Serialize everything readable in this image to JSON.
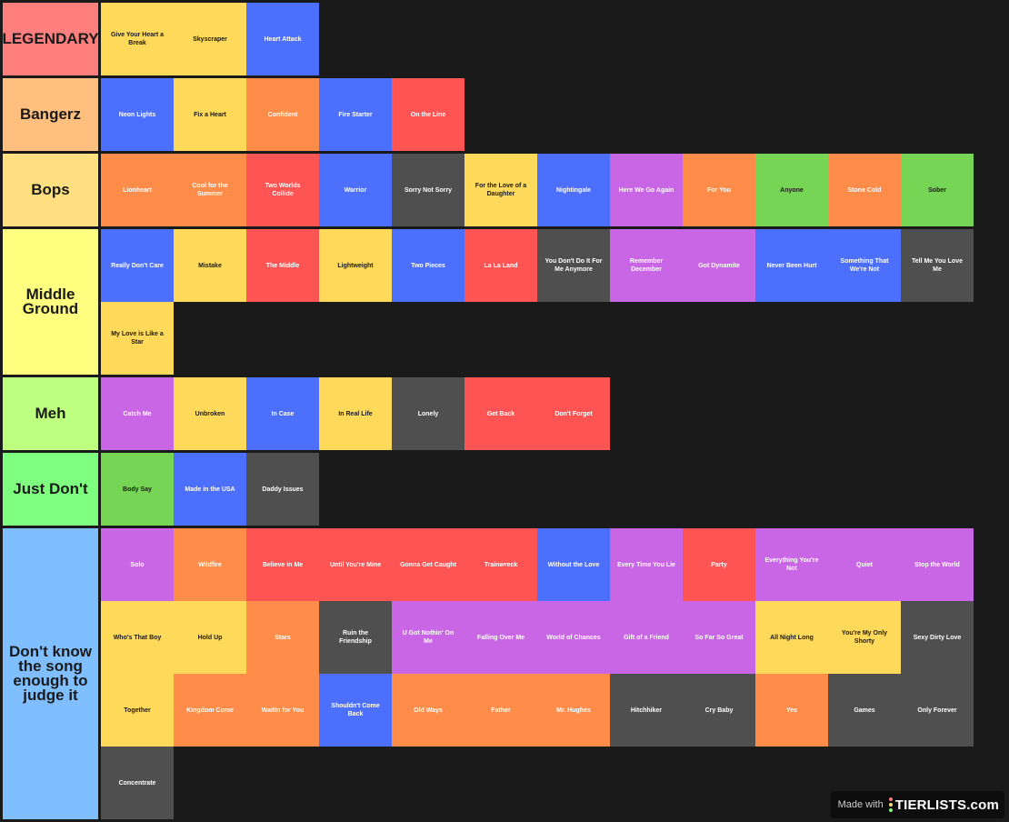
{
  "tiers": [
    {
      "label": "LEGENDARY",
      "color": "#ff7f7f",
      "rows": 1,
      "items": [
        {
          "title": "Give Your Heart a Break",
          "color": "yellow"
        },
        {
          "title": "Skyscraper",
          "color": "yellow"
        },
        {
          "title": "Heart Attack",
          "color": "blue"
        }
      ]
    },
    {
      "label": "Bangerz",
      "color": "#ffbf7f",
      "rows": 1,
      "items": [
        {
          "title": "Neon Lights",
          "color": "blue"
        },
        {
          "title": "Fix a Heart",
          "color": "yellow"
        },
        {
          "title": "Confident",
          "color": "orange"
        },
        {
          "title": "Fire Starter",
          "color": "blue"
        },
        {
          "title": "On the Line",
          "color": "red"
        }
      ]
    },
    {
      "label": "Bops",
      "color": "#ffdf7f",
      "rows": 1,
      "items": [
        {
          "title": "Lionheart",
          "color": "orange"
        },
        {
          "title": "Cool for the Summer",
          "color": "orange"
        },
        {
          "title": "Two Worlds Collide",
          "color": "red"
        },
        {
          "title": "Warrior",
          "color": "blue"
        },
        {
          "title": "Sorry Not Sorry",
          "color": "gray"
        },
        {
          "title": "For the Love of a Daughter",
          "color": "yellow"
        },
        {
          "title": "Nightingale",
          "color": "blue"
        },
        {
          "title": "Here We Go Again",
          "color": "purple"
        },
        {
          "title": "For You",
          "color": "orange"
        },
        {
          "title": "Anyone",
          "color": "green"
        },
        {
          "title": "Stone Cold",
          "color": "orange"
        },
        {
          "title": "Sober",
          "color": "green"
        }
      ]
    },
    {
      "label": "Middle Ground",
      "color": "#ffff7f",
      "rows": 2,
      "items": [
        {
          "title": "Really Don't Care",
          "color": "blue"
        },
        {
          "title": "Mistake",
          "color": "yellow"
        },
        {
          "title": "The Middle",
          "color": "red"
        },
        {
          "title": "Lightweight",
          "color": "yellow"
        },
        {
          "title": "Two Pieces",
          "color": "blue"
        },
        {
          "title": "La La Land",
          "color": "red"
        },
        {
          "title": "You Don't Do It For Me Anymore",
          "color": "gray"
        },
        {
          "title": "Remember December",
          "color": "purple"
        },
        {
          "title": "Got Dynamite",
          "color": "purple"
        },
        {
          "title": "Never Been Hurt",
          "color": "blue"
        },
        {
          "title": "Something That We're Not",
          "color": "blue"
        },
        {
          "title": "Tell Me You Love Me",
          "color": "gray"
        },
        {
          "title": "My Love is Like a Star",
          "color": "yellow"
        }
      ]
    },
    {
      "label": "Meh",
      "color": "#bfff7f",
      "rows": 1,
      "items": [
        {
          "title": "Catch Me",
          "color": "purple"
        },
        {
          "title": "Unbroken",
          "color": "yellow"
        },
        {
          "title": "In Case",
          "color": "blue"
        },
        {
          "title": "In Real Life",
          "color": "yellow"
        },
        {
          "title": "Lonely",
          "color": "gray"
        },
        {
          "title": "Get Back",
          "color": "red"
        },
        {
          "title": "Don't Forget",
          "color": "red"
        }
      ]
    },
    {
      "label": "Just Don't",
      "color": "#7fff7f",
      "rows": 1,
      "items": [
        {
          "title": "Body Say",
          "color": "green"
        },
        {
          "title": "Made in the USA",
          "color": "blue"
        },
        {
          "title": "Daddy Issues",
          "color": "gray"
        }
      ]
    },
    {
      "label": "Don't know the song enough to judge it",
      "color": "#7fbfff",
      "rows": 4,
      "items": [
        {
          "title": "Solo",
          "color": "purple"
        },
        {
          "title": "Wildfire",
          "color": "orange"
        },
        {
          "title": "Believe in Me",
          "color": "red"
        },
        {
          "title": "Until You're Mine",
          "color": "red"
        },
        {
          "title": "Gonna Get Caught",
          "color": "red"
        },
        {
          "title": "Trainwreck",
          "color": "red"
        },
        {
          "title": "Without the Love",
          "color": "blue"
        },
        {
          "title": "Every Time You Lie",
          "color": "purple"
        },
        {
          "title": "Party",
          "color": "red"
        },
        {
          "title": "Everything You're Not",
          "color": "purple"
        },
        {
          "title": "Quiet",
          "color": "purple"
        },
        {
          "title": "Stop the World",
          "color": "purple"
        },
        {
          "title": "Who's That Boy",
          "color": "yellow"
        },
        {
          "title": "Hold Up",
          "color": "yellow"
        },
        {
          "title": "Stars",
          "color": "orange"
        },
        {
          "title": "Ruin the Friendship",
          "color": "gray"
        },
        {
          "title": "U Got Nothin' On Me",
          "color": "purple"
        },
        {
          "title": "Falling Over Me",
          "color": "purple"
        },
        {
          "title": "World of Chances",
          "color": "purple"
        },
        {
          "title": "Gift of a Friend",
          "color": "purple"
        },
        {
          "title": "So Far So Great",
          "color": "purple"
        },
        {
          "title": "All Night Long",
          "color": "yellow"
        },
        {
          "title": "You're My Only Shorty",
          "color": "yellow"
        },
        {
          "title": "Sexy Dirty Love",
          "color": "gray"
        },
        {
          "title": "Together",
          "color": "yellow"
        },
        {
          "title": "Kingdom Come",
          "color": "orange"
        },
        {
          "title": "Waitin for You",
          "color": "orange"
        },
        {
          "title": "Shouldn't Come Back",
          "color": "blue"
        },
        {
          "title": "Old Ways",
          "color": "orange"
        },
        {
          "title": "Father",
          "color": "orange"
        },
        {
          "title": "Mr. Hughes",
          "color": "orange"
        },
        {
          "title": "Hitchhiker",
          "color": "gray"
        },
        {
          "title": "Cry Baby",
          "color": "gray"
        },
        {
          "title": "Yes",
          "color": "orange"
        },
        {
          "title": "Games",
          "color": "gray"
        },
        {
          "title": "Only Forever",
          "color": "gray"
        },
        {
          "title": "Concentrate",
          "color": "gray"
        }
      ]
    }
  ],
  "palette": {
    "yellow": "#ffd959",
    "blue": "#4d6ffe",
    "orange": "#ff8c48",
    "red": "#fe5454",
    "purple": "#c966e5",
    "green": "#77d556",
    "gray": "#4f4f4f"
  },
  "watermark": {
    "made_with": "Made with",
    "brand": "TIERLISTS.com"
  }
}
